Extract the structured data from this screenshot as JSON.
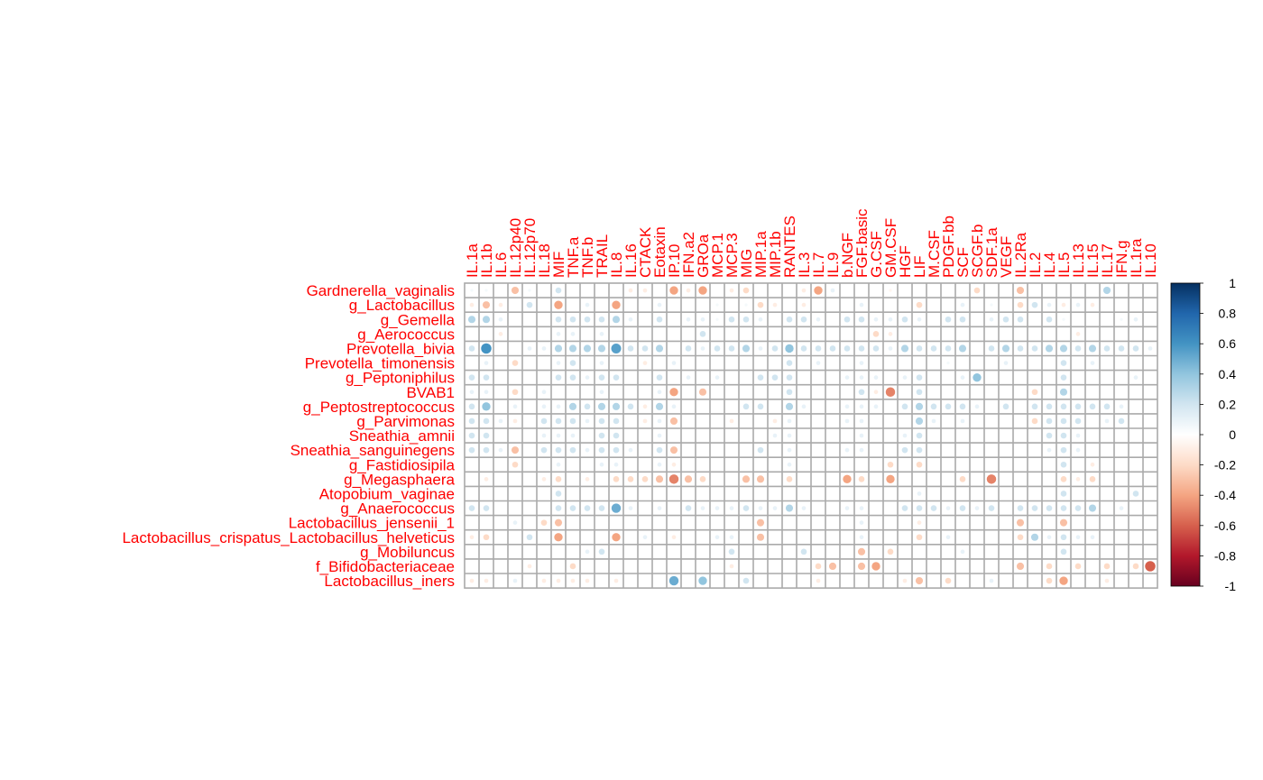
{
  "chart_data": {
    "type": "heatmap",
    "title": "",
    "xlabel": "",
    "ylabel": "",
    "columns": [
      "IL.1a",
      "IL.1b",
      "IL.6",
      "IL.12p40",
      "IL.12p70",
      "IL.18",
      "MIF",
      "TNF.a",
      "TNF.b",
      "TRAIL",
      "IL.8",
      "IL.16",
      "CTACK",
      "Eotaxin",
      "IP.10",
      "IFN.a2",
      "GROa",
      "MCP.1",
      "MCP.3",
      "MIG",
      "MIP.1a",
      "MIP.1b",
      "RANTES",
      "IL.3",
      "IL.7",
      "IL.9",
      "b.NGF",
      "FGF.basic",
      "G.CSF",
      "GM.CSF",
      "HGF",
      "LIF",
      "M.CSF",
      "PDGF.bb",
      "SCF",
      "SCGF.b",
      "SDF.1a",
      "VEGF",
      "IL.2Ra",
      "IL.2",
      "IL.4",
      "IL.5",
      "IL.13",
      "IL.15",
      "IL.17",
      "IFN.g",
      "IL.1ra",
      "IL.10"
    ],
    "rows": [
      "Gardnerella_vaginalis",
      "g_Lactobacillus",
      "g_Gemella",
      "g_Aerococcus",
      "Prevotella_bivia",
      "Prevotella_timonensis",
      "g_Peptoniphilus",
      "BVAB1",
      "g_Peptostreptococcus",
      "g_Parvimonas",
      "Sneathia_amnii",
      "Sneathia_sanguinegens",
      "g_Fastidiosipila",
      "g_Megasphaera",
      "Atopobium_vaginae",
      "g_Anaerococcus",
      "Lactobacillus_jensenii_1",
      "Lactobacillus_crispatus_Lactobacillus_helveticus",
      "g_Mobiluncus",
      "f_Bifidobacteriaceae",
      "Lactobacillus_iners"
    ],
    "values": [
      [
        0.05,
        0.05,
        0,
        -0.3,
        0.05,
        0,
        0.2,
        0,
        0,
        0,
        0,
        -0.1,
        -0.1,
        0,
        -0.4,
        -0.1,
        -0.4,
        0,
        -0.1,
        -0.2,
        0,
        0,
        0,
        -0.1,
        -0.4,
        0.1,
        0,
        0,
        0,
        -0.05,
        0,
        0,
        0,
        0,
        0,
        -0.2,
        0,
        0,
        -0.3,
        0,
        0,
        0,
        0,
        0,
        0.3,
        0,
        0,
        0
      ],
      [
        -0.1,
        -0.3,
        -0.1,
        0,
        0.2,
        0,
        -0.4,
        0,
        0.1,
        0,
        -0.4,
        0,
        0,
        0.1,
        0,
        0,
        0,
        0.05,
        0,
        0.05,
        -0.2,
        -0.1,
        0,
        -0.1,
        0,
        0,
        0,
        0.1,
        0,
        0,
        0,
        -0.2,
        0,
        0,
        0.1,
        0,
        0.05,
        0,
        -0.2,
        0.2,
        0.1,
        -0.1,
        0.1,
        -0.1,
        0,
        0,
        0,
        0
      ],
      [
        0.3,
        0.3,
        0.1,
        0,
        0,
        0,
        0.2,
        0.2,
        0.2,
        0.2,
        0.3,
        0.1,
        0,
        0.2,
        0,
        0.1,
        0.1,
        0.05,
        0.2,
        0.2,
        0.1,
        0,
        0.2,
        0.2,
        0.1,
        0,
        0.2,
        0.2,
        0.1,
        0.1,
        0.2,
        0.1,
        0,
        0.2,
        0.2,
        0,
        0.1,
        0.2,
        0.2,
        0,
        0.2,
        0.05,
        0,
        0,
        0,
        0.05,
        0.1,
        0
      ],
      [
        0,
        0,
        -0.1,
        0,
        0,
        0,
        0.1,
        0.1,
        0,
        0.1,
        0,
        0,
        0,
        0,
        0,
        0,
        0.2,
        0,
        0,
        0,
        0,
        0,
        0,
        0,
        0,
        0,
        0,
        0,
        -0.2,
        -0.1,
        0,
        0,
        0,
        0,
        0,
        0,
        0,
        0,
        0,
        0,
        0,
        0,
        -0.1,
        0,
        0,
        0,
        0,
        0
      ],
      [
        0.2,
        0.6,
        0,
        0,
        0.1,
        0.1,
        0.3,
        0.3,
        0.3,
        0.3,
        0.55,
        0.2,
        0.2,
        0.3,
        0,
        0.2,
        0.1,
        0.2,
        0.2,
        0.3,
        0.1,
        0.2,
        0.4,
        0.2,
        0.2,
        0.2,
        0.2,
        0.2,
        0.2,
        0.1,
        0.3,
        0.2,
        0.2,
        0.2,
        0.3,
        0,
        0.2,
        0.3,
        0.2,
        0.2,
        0.3,
        0.3,
        0.2,
        0.3,
        0.2,
        0.2,
        0.2,
        0.1
      ],
      [
        0,
        0.1,
        0,
        -0.2,
        0,
        0,
        0.1,
        0.2,
        0,
        0.1,
        0,
        0,
        -0.1,
        0,
        0.1,
        0,
        0,
        0,
        0,
        0,
        0,
        0,
        0.2,
        0,
        0.1,
        0,
        0,
        0.1,
        0,
        0,
        0,
        0,
        0,
        0.05,
        0,
        0,
        0,
        0.1,
        0,
        0,
        0,
        0.2,
        0,
        0.1,
        0,
        0,
        0,
        0
      ],
      [
        0.2,
        0.2,
        0,
        0,
        0,
        0,
        0.2,
        0.2,
        0.1,
        0.2,
        0.2,
        0,
        0,
        0.2,
        0,
        0.1,
        0,
        0.1,
        0,
        0,
        0.2,
        0.2,
        0.2,
        0,
        0,
        0,
        0.1,
        0.1,
        0.1,
        0,
        0.1,
        0.2,
        0,
        0,
        0.1,
        0.4,
        0,
        0,
        0,
        0,
        0,
        0.2,
        0,
        0,
        0,
        0,
        0.1,
        0
      ],
      [
        0.1,
        0.1,
        0,
        -0.2,
        0,
        0.1,
        0,
        0,
        0,
        0.1,
        0,
        0,
        0,
        0.1,
        -0.4,
        0,
        -0.3,
        0,
        0,
        0,
        0,
        0,
        0.2,
        0,
        0,
        0,
        0,
        0.2,
        -0.1,
        -0.5,
        0,
        0.2,
        0,
        0,
        0,
        0,
        0,
        0,
        0,
        -0.2,
        0,
        0.3,
        0,
        0,
        0,
        0,
        0,
        0
      ],
      [
        0.2,
        0.4,
        0,
        0.1,
        0,
        0.1,
        0.1,
        0.3,
        0.2,
        0.3,
        0.3,
        0.2,
        -0.1,
        0.3,
        0.1,
        0,
        0,
        0,
        0,
        0.2,
        0.2,
        0,
        0.3,
        0.1,
        0,
        0,
        0.1,
        0.1,
        0.1,
        0,
        0.2,
        0.3,
        0.2,
        0.2,
        0.2,
        0.1,
        0,
        0.2,
        0,
        0.2,
        0.2,
        0.2,
        0.2,
        0.2,
        0.2,
        0.1,
        0,
        0
      ],
      [
        0.2,
        0.2,
        0.1,
        -0.1,
        0,
        0.2,
        0.2,
        0.2,
        0.1,
        0.2,
        0.2,
        0,
        -0.1,
        0.1,
        -0.3,
        0,
        0,
        0,
        -0.1,
        0,
        0,
        -0.1,
        0.1,
        0,
        0,
        0,
        0.1,
        0.1,
        0,
        0,
        0,
        0.3,
        0.1,
        0,
        0.1,
        0,
        0,
        0,
        0,
        -0.2,
        0.2,
        0.2,
        0.2,
        0,
        0.1,
        0.2,
        0,
        0
      ],
      [
        0.2,
        0.2,
        0,
        0,
        0,
        0.1,
        0.1,
        0.1,
        0,
        0.2,
        0.2,
        0,
        0,
        0.1,
        0,
        0,
        0,
        0,
        0,
        0,
        0,
        0.1,
        0.1,
        0,
        0,
        0,
        0,
        0.1,
        0,
        0,
        0.1,
        0.2,
        0,
        0,
        0,
        0,
        0,
        0,
        0,
        0,
        0.2,
        0.2,
        0.1,
        0,
        0,
        0,
        0,
        0
      ],
      [
        0.2,
        0.2,
        0.1,
        -0.3,
        0,
        0.2,
        0.2,
        0.2,
        0.1,
        0.2,
        0.2,
        0.1,
        0,
        0.2,
        -0.3,
        0,
        0,
        0,
        0,
        0,
        0.2,
        0,
        0.1,
        0,
        0,
        0,
        0.1,
        0.1,
        0,
        0,
        0.2,
        0.2,
        0,
        0,
        0,
        0,
        0,
        0,
        0,
        0,
        0.1,
        0.2,
        0.1,
        0,
        0,
        0,
        0,
        0
      ],
      [
        0,
        0,
        0,
        -0.2,
        0,
        0,
        0.1,
        0,
        0,
        0.1,
        0.1,
        0,
        0,
        0.1,
        -0.1,
        0,
        0,
        0,
        0,
        0,
        0,
        0,
        0.1,
        0,
        0,
        0,
        0,
        0,
        0,
        -0.2,
        0,
        -0.2,
        0,
        0,
        0,
        0,
        0,
        0,
        0,
        0,
        0,
        0.2,
        0,
        -0.1,
        0,
        0,
        0,
        0
      ],
      [
        0,
        -0.1,
        0,
        0,
        0,
        -0.1,
        -0.2,
        0,
        -0.1,
        0,
        -0.2,
        -0.2,
        -0.2,
        -0.3,
        -0.5,
        -0.3,
        -0.2,
        0,
        0,
        -0.3,
        -0.3,
        0,
        -0.2,
        0,
        0,
        0,
        -0.4,
        -0.2,
        0,
        -0.4,
        0,
        0,
        0,
        0,
        -0.2,
        0,
        -0.5,
        0,
        0,
        0,
        0,
        -0.2,
        -0.1,
        -0.2,
        0,
        0,
        0,
        0
      ],
      [
        0,
        0,
        0,
        0,
        0,
        0,
        0.2,
        0,
        0,
        0,
        0,
        0,
        0,
        0,
        0,
        0,
        0,
        0,
        0,
        0,
        0,
        0,
        0,
        0,
        0,
        0,
        0,
        0,
        0,
        0,
        0,
        0.1,
        0,
        0,
        0,
        0,
        0,
        0,
        0,
        0,
        0,
        0.2,
        0,
        0,
        0,
        0,
        0.2,
        0
      ],
      [
        0.2,
        0.2,
        0,
        0,
        0,
        0,
        0.2,
        0.2,
        0.2,
        0.2,
        0.5,
        0.1,
        0,
        0.1,
        0,
        0.2,
        0.1,
        0.1,
        0.1,
        0.2,
        0.1,
        0.1,
        0.3,
        0.1,
        0,
        0,
        0.1,
        0.1,
        0,
        0,
        0.2,
        0.2,
        0.2,
        0.1,
        0.2,
        0.1,
        0.2,
        0,
        0.2,
        0.2,
        0.2,
        0.2,
        0.2,
        0.3,
        0,
        0.1,
        0,
        0
      ],
      [
        0,
        0,
        0,
        0.1,
        0,
        -0.2,
        -0.3,
        0,
        0,
        0,
        0,
        0,
        0,
        0,
        0,
        0,
        0,
        0,
        0,
        0,
        -0.3,
        0,
        0,
        0,
        0,
        0,
        0,
        0.1,
        0,
        0,
        0,
        -0.1,
        0,
        0,
        0,
        0,
        0,
        0,
        -0.3,
        0,
        0,
        -0.3,
        0,
        0,
        0,
        0,
        0,
        0
      ],
      [
        -0.1,
        -0.2,
        0,
        0,
        0.2,
        0,
        -0.4,
        0,
        0,
        0,
        -0.4,
        0,
        0.1,
        0,
        -0.1,
        0,
        0,
        0.1,
        0.1,
        0,
        -0.3,
        0,
        0,
        0,
        0,
        0,
        0,
        0.1,
        0,
        0,
        0,
        -0.2,
        0,
        0.1,
        0,
        0,
        0,
        0,
        -0.2,
        0.3,
        0.1,
        0.2,
        0.1,
        0.1,
        0,
        0,
        0,
        0
      ],
      [
        0,
        0,
        0,
        0,
        0,
        0,
        0,
        0,
        0.1,
        0.2,
        0,
        0,
        0,
        0,
        0,
        0,
        0,
        0,
        0.2,
        0,
        0,
        0,
        0,
        0.2,
        0,
        0,
        0,
        -0.3,
        0,
        -0.2,
        0,
        0,
        0,
        0,
        0.1,
        0,
        0,
        0,
        0,
        0,
        0,
        0.2,
        0,
        0,
        0,
        0,
        0,
        0
      ],
      [
        0,
        0,
        0,
        0,
        -0.1,
        0,
        0,
        -0.2,
        0,
        0,
        0,
        0,
        0,
        0,
        0,
        0,
        0,
        0,
        -0.1,
        0,
        0,
        0,
        0,
        0,
        -0.2,
        -0.3,
        0,
        -0.3,
        -0.4,
        0,
        0,
        0,
        0,
        0,
        0,
        0,
        0,
        0,
        -0.3,
        0,
        -0.2,
        0,
        -0.2,
        0,
        -0.2,
        0,
        -0.2,
        -0.6
      ],
      [
        -0.1,
        -0.1,
        0,
        0.1,
        0,
        -0.1,
        -0.1,
        -0.1,
        -0.1,
        0,
        -0.1,
        0,
        0,
        0,
        0.5,
        0,
        0.4,
        0,
        0,
        0.2,
        0,
        0,
        0,
        0,
        -0.1,
        0,
        0,
        0,
        0,
        0,
        -0.1,
        -0.3,
        0,
        -0.2,
        0,
        0,
        0.1,
        0,
        0,
        0,
        -0.2,
        -0.4,
        0,
        0,
        -0.1,
        0,
        0,
        0
      ]
    ],
    "colorbar": {
      "range": [
        -1,
        1
      ],
      "ticks": [
        "1",
        "0.8",
        "0.6",
        "0.4",
        "0.2",
        "0",
        "-0.2",
        "-0.4",
        "-0.6",
        "-0.8",
        "-1"
      ],
      "colors": [
        "#67001F",
        "#B2182B",
        "#D6604D",
        "#F4A582",
        "#FDDBC7",
        "#FFFFFF",
        "#D1E5F0",
        "#92C5DE",
        "#4393C3",
        "#2166AC",
        "#053061"
      ]
    },
    "label_color": "#FF0000",
    "grid_color": "#AAAAAA"
  }
}
